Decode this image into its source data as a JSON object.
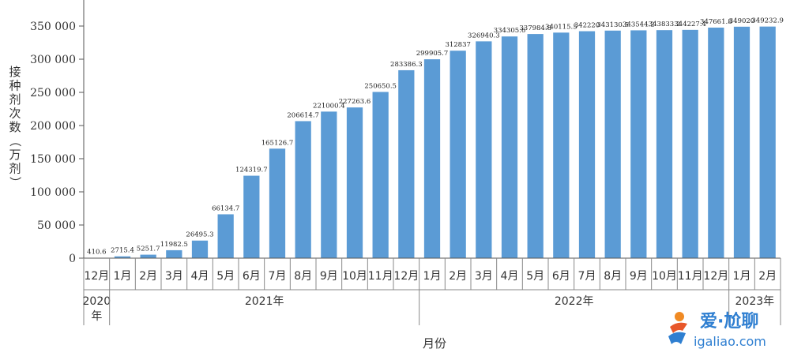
{
  "chart_data": {
    "type": "bar",
    "ylabel": "接种剂次数（万剂）",
    "xlabel": "月份",
    "ylim": [
      0,
      350000
    ],
    "yticks": [
      0,
      50000,
      100000,
      150000,
      200000,
      250000,
      300000,
      350000
    ],
    "ytick_labels": [
      "0",
      "50 000",
      "100 000",
      "150 000",
      "200 000",
      "250 000",
      "300 000",
      "350 000"
    ],
    "bar_color": "#5b9bd5",
    "categories": [
      "12月",
      "1月",
      "2月",
      "3月",
      "4月",
      "5月",
      "6月",
      "7月",
      "8月",
      "9月",
      "10月",
      "11月",
      "12月",
      "1月",
      "2月",
      "3月",
      "4月",
      "5月",
      "6月",
      "7月",
      "8月",
      "9月",
      "10月",
      "11月",
      "12月",
      "1月",
      "2月"
    ],
    "values": [
      410.6,
      2715.4,
      5251.7,
      11982.5,
      26495.3,
      66134.7,
      124319.7,
      165126.7,
      206614.7,
      221000.4,
      227263.6,
      250650.5,
      283386.3,
      299905.7,
      312837,
      326940.3,
      334305.6,
      337984.8,
      340115.5,
      342220,
      343130.5,
      343544.2,
      343833.2,
      344227.4,
      347661.8,
      349020,
      349232.9
    ],
    "data_labels": [
      "410.6",
      "2715.4",
      "5251.7",
      "11982.5",
      "26495.3",
      "66134.7",
      "124319.7",
      "165126.7",
      "206614.7",
      "221000.4",
      "227263.6",
      "250650.5",
      "283386.3",
      "299905.7",
      "312837",
      "326940.3",
      "334305.6",
      "337984.8",
      "340115.5",
      "342220",
      "343130.5",
      "343544.2",
      "343833.2",
      "344227.4",
      "347661.8",
      "349020",
      "349232.9"
    ],
    "year_groups": [
      {
        "label_lines": [
          "2020",
          "年"
        ],
        "start": 0,
        "count": 1
      },
      {
        "label_lines": [
          "2021年"
        ],
        "start": 1,
        "count": 12
      },
      {
        "label_lines": [
          "2022年"
        ],
        "start": 13,
        "count": 12
      },
      {
        "label_lines": [
          "2023年"
        ],
        "start": 25,
        "count": 2
      }
    ]
  },
  "watermark": {
    "brand": "爱·尬聊",
    "domain": "igaliao.com"
  }
}
